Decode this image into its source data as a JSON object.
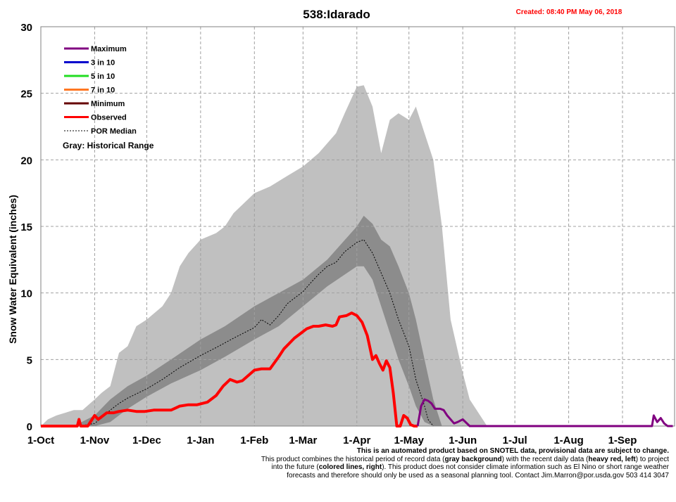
{
  "chart_data": {
    "type": "line",
    "title": "538:Idarado",
    "created": "Created: 08:40 PM May 06, 2018",
    "ylabel": "Snow Water Equivalent (inches)",
    "xlabel": "",
    "ylim": [
      0,
      30
    ],
    "yticks": [
      0,
      5,
      10,
      15,
      20,
      25,
      30
    ],
    "xlim": [
      "Oct 1",
      "Sep 30"
    ],
    "month_ticks": [
      "1-Oct",
      "1-Nov",
      "1-Dec",
      "1-Jan",
      "1-Feb",
      "1-Mar",
      "1-Apr",
      "1-May",
      "1-Jun",
      "1-Jul",
      "1-Aug",
      "1-Sep"
    ],
    "grid": true,
    "legend": {
      "position": "top-left",
      "entries": [
        {
          "label": "Maximum",
          "color": "#800080",
          "style": "solid"
        },
        {
          "label": "3 in 10",
          "color": "#0000cc",
          "style": "solid"
        },
        {
          "label": "5 in 10",
          "color": "#22dd22",
          "style": "solid"
        },
        {
          "label": "7 in 10",
          "color": "#ff7722",
          "style": "solid"
        },
        {
          "label": "Minimum",
          "color": "#660000",
          "style": "solid"
        },
        {
          "label": "Observed",
          "color": "#ff0000",
          "style": "solid"
        },
        {
          "label": "POR Median",
          "color": "#000000",
          "style": "dotted"
        }
      ],
      "note": "Gray: Historical Range"
    },
    "historical_range": {
      "x": [
        "Oct 1",
        "Oct 5",
        "Oct 10",
        "Oct 15",
        "Oct 20",
        "Oct 25",
        "Nov 1",
        "Nov 5",
        "Nov 10",
        "Nov 15",
        "Nov 20",
        "Nov 25",
        "Dec 1",
        "Dec 10",
        "Dec 15",
        "Dec 20",
        "Dec 25",
        "Jan 1",
        "Jan 10",
        "Jan 15",
        "Jan 20",
        "Feb 1",
        "Feb 10",
        "Feb 20",
        "Mar 1",
        "Mar 10",
        "Mar 20",
        "Mar 25",
        "Apr 1",
        "Apr 5",
        "Apr 10",
        "Apr 15",
        "Apr 20",
        "Apr 25",
        "May 1",
        "May 5",
        "May 10",
        "May 15",
        "May 20",
        "May 25",
        "Jun 1",
        "Jun 5",
        "Jun 10",
        "Jun 15",
        "Sep 20",
        "Sep 25",
        "Sep 30"
      ],
      "max": [
        0,
        0.5,
        0.8,
        1,
        1.2,
        1.2,
        2,
        2.5,
        3,
        5.5,
        6,
        7.5,
        8,
        9,
        10,
        12,
        13,
        14,
        14.5,
        15,
        16,
        17.5,
        18,
        18.8,
        19.5,
        20.5,
        22,
        23.5,
        25.5,
        25.6,
        24,
        20.5,
        23,
        23.5,
        23,
        24,
        22,
        20,
        15,
        8,
        4,
        2,
        1,
        0,
        0,
        0,
        0
      ],
      "min": [
        0,
        0,
        0,
        0,
        0,
        0,
        0,
        0,
        0,
        0,
        0,
        0,
        0,
        0,
        0,
        0,
        0,
        0,
        0,
        0,
        0,
        0,
        0,
        0,
        0,
        0,
        0,
        0,
        0,
        0,
        0,
        0,
        0,
        0,
        0,
        0,
        0,
        0,
        0,
        0,
        0,
        0,
        0,
        0,
        0,
        0,
        0
      ]
    },
    "interquartile_band": {
      "x": [
        "Oct 20",
        "Nov 1",
        "Nov 10",
        "Nov 20",
        "Dec 1",
        "Dec 15",
        "Jan 1",
        "Jan 15",
        "Feb 1",
        "Feb 15",
        "Mar 1",
        "Mar 15",
        "Apr 1",
        "Apr 5",
        "Apr 10",
        "Apr 15",
        "Apr 20",
        "Apr 25",
        "May 1",
        "May 5",
        "May 10",
        "May 15",
        "May 20"
      ],
      "upper": [
        0,
        0.8,
        2,
        3,
        3.8,
        5,
        6.5,
        7.5,
        9,
        10,
        11,
        12.5,
        15,
        15.8,
        15.2,
        14,
        13.5,
        12,
        10,
        8,
        5,
        2,
        0
      ],
      "lower": [
        0,
        0,
        0.3,
        1.3,
        2.2,
        3.2,
        4.2,
        5.2,
        6.5,
        7.5,
        9,
        10.5,
        12,
        12,
        11,
        9,
        7,
        5,
        3,
        1.5,
        0.3,
        0,
        0
      ]
    },
    "series": [
      {
        "name": "POR Median",
        "color": "#000000",
        "style": "dotted",
        "x": [
          "Oct 20",
          "Oct 25",
          "Nov 1",
          "Nov 5",
          "Nov 10",
          "Nov 15",
          "Nov 20",
          "Dec 1",
          "Dec 10",
          "Dec 20",
          "Jan 1",
          "Jan 10",
          "Jan 20",
          "Feb 1",
          "Feb 5",
          "Feb 10",
          "Feb 15",
          "Feb 20",
          "Mar 1",
          "Mar 5",
          "Mar 10",
          "Mar 15",
          "Mar 20",
          "Mar 25",
          "Apr 1",
          "Apr 5",
          "Apr 10",
          "Apr 15",
          "Apr 20",
          "Apr 25",
          "May 1",
          "May 5",
          "May 10",
          "May 12",
          "May 15"
        ],
        "values": [
          0,
          0.05,
          0.2,
          0.6,
          1.2,
          1.7,
          2.1,
          2.8,
          3.5,
          4.4,
          5.3,
          5.9,
          6.6,
          7.4,
          8,
          7.6,
          8.3,
          9.2,
          10.1,
          10.7,
          11.4,
          12,
          12.3,
          13.1,
          13.8,
          14,
          13,
          11.5,
          10,
          8,
          6,
          3.5,
          1.5,
          0.5,
          0
        ]
      },
      {
        "name": "Observed",
        "color": "#ff0000",
        "style": "solid",
        "x": [
          "Oct 1",
          "Oct 22",
          "Oct 23",
          "Oct 24",
          "Oct 28",
          "Nov 1",
          "Nov 3",
          "Nov 6",
          "Nov 8",
          "Nov 12",
          "Nov 15",
          "Nov 20",
          "Nov 25",
          "Nov 30",
          "Dec 5",
          "Dec 10",
          "Dec 15",
          "Dec 20",
          "Dec 25",
          "Dec 30",
          "Jan 5",
          "Jan 10",
          "Jan 14",
          "Jan 18",
          "Jan 22",
          "Jan 25",
          "Feb 1",
          "Feb 5",
          "Feb 10",
          "Feb 15",
          "Feb 18",
          "Feb 21",
          "Feb 24",
          "Feb 28",
          "Mar 3",
          "Mar 7",
          "Mar 10",
          "Mar 14",
          "Mar 18",
          "Mar 20",
          "Mar 22",
          "Mar 26",
          "Mar 29",
          "Apr 1",
          "Apr 4",
          "Apr 7",
          "Apr 10",
          "Apr 12",
          "Apr 14",
          "Apr 16",
          "Apr 18",
          "Apr 20",
          "Apr 22",
          "Apr 24",
          "Apr 26",
          "Apr 28",
          "Apr 30",
          "May 2",
          "May 4",
          "May 5",
          "May 6"
        ],
        "values": [
          0,
          0,
          0.5,
          0,
          0,
          0.8,
          0.5,
          0.8,
          1,
          1,
          1.1,
          1.2,
          1.1,
          1.1,
          1.2,
          1.2,
          1.2,
          1.5,
          1.6,
          1.6,
          1.8,
          2.3,
          3,
          3.5,
          3.3,
          3.4,
          4.2,
          4.3,
          4.3,
          5.2,
          5.8,
          6.2,
          6.6,
          7,
          7.3,
          7.5,
          7.5,
          7.6,
          7.5,
          7.6,
          8.2,
          8.3,
          8.5,
          8.3,
          7.8,
          6.8,
          5,
          5.3,
          4.7,
          4.2,
          4.9,
          4.4,
          2.5,
          0,
          0,
          0.8,
          0.6,
          0.1,
          0,
          0,
          0
        ]
      },
      {
        "name": "Maximum",
        "color": "#800080",
        "style": "solid",
        "x": [
          "May 6",
          "May 8",
          "May 10",
          "May 12",
          "May 14",
          "May 16",
          "May 19",
          "May 21",
          "May 23",
          "May 25",
          "May 27",
          "May 29",
          "Jun 1",
          "Jun 5",
          "Sep 18",
          "Sep 19",
          "Sep 21",
          "Sep 23",
          "Sep 25",
          "Sep 27",
          "Sep 30"
        ],
        "values": [
          0,
          1.5,
          2,
          1.9,
          1.7,
          1.3,
          1.3,
          1.2,
          0.8,
          0.5,
          0.2,
          0.3,
          0.5,
          0,
          0,
          0.8,
          0.3,
          0.6,
          0.2,
          0,
          0
        ]
      }
    ],
    "notice": {
      "heading": "This is an automated product based on SNOTEL data, provisional data are subject to change.",
      "line1_a": "This product combines the historical period of record data (",
      "line1_b": "gray background",
      "line1_c": ") with the recent daily data (",
      "line1_d": "heavy red, left",
      "line1_e": ") to project",
      "line2_a": "into the future (",
      "line2_b": "colored lines, right",
      "line2_c": "). This product does not consider climate information such as El Nino or short range weather",
      "line3": "forecasts and therefore should only be used as a seasonal planning tool. Contact Jim.Marron@por.usda.gov 503 414 3047"
    }
  }
}
